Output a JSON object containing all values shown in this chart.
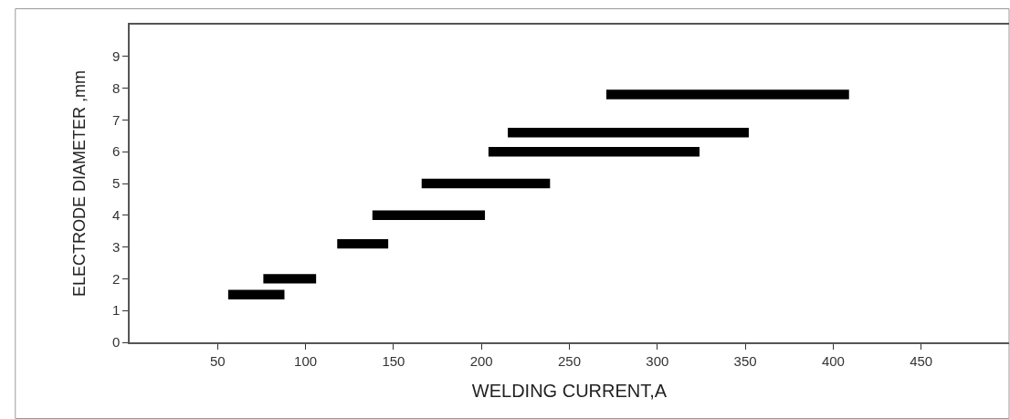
{
  "chart_data": {
    "type": "bar",
    "orientation": "horizontal",
    "xlabel": "WELDING CURRENT,A",
    "ylabel": "ELECTRODE DIAMETER ,mm",
    "x": [
      1.5,
      2,
      3.1,
      4,
      5,
      6,
      6.6,
      7.8
    ],
    "base": [
      56,
      76,
      118,
      138,
      166,
      204,
      215,
      271
    ],
    "values": [
      32,
      30,
      29,
      64,
      73,
      120,
      137,
      138
    ],
    "color": "#000000",
    "xlim": [
      0,
      500
    ],
    "xticks": [
      50,
      100,
      150,
      200,
      250,
      300,
      350,
      400,
      450
    ],
    "ylim": [
      0,
      10
    ],
    "yticks": [
      0,
      1,
      2,
      3,
      4,
      5,
      6,
      7,
      8,
      9
    ]
  }
}
